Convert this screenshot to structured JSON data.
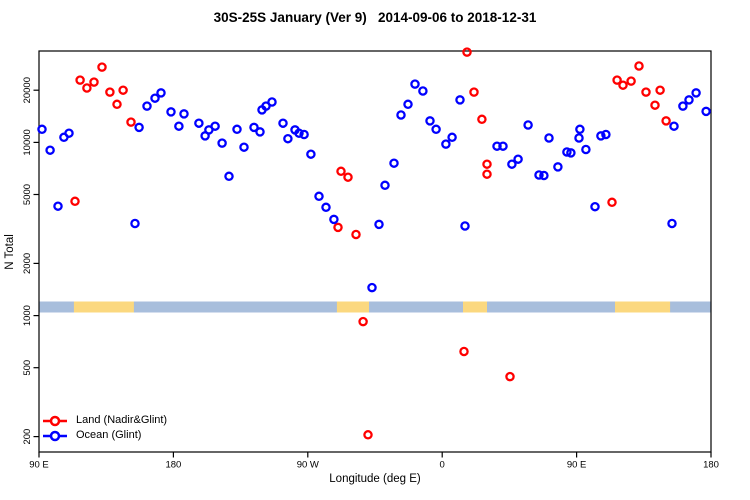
{
  "title": "30S-25S January (Ver 9)   2014-09-06 to 2018-12-31",
  "chart_data": {
    "type": "scatter",
    "xlabel": "Longitude (deg E)",
    "ylabel": "N Total",
    "x_range": [
      90,
      540
    ],
    "y_range": [
      163,
      33700
    ],
    "y_scale": "log",
    "grid": false,
    "x_ticks": [
      {
        "value": 90,
        "label": "90 E"
      },
      {
        "value": 180,
        "label": "180"
      },
      {
        "value": 270,
        "label": "90 W"
      },
      {
        "value": 360,
        "label": "0"
      },
      {
        "value": 450,
        "label": "90 E"
      },
      {
        "value": 540,
        "label": "180"
      }
    ],
    "y_ticks": [
      200,
      500,
      1000,
      2000,
      5000,
      10000,
      20000
    ],
    "band": {
      "description": "land/ocean strip along longitude",
      "value_top": 1205,
      "value_bottom": 1041,
      "ocean_color": "#a8bedc",
      "land_color": "#fbd87f",
      "land_segments_lon": [
        [
          113.4,
          153.6
        ],
        [
          289.5,
          311.0
        ],
        [
          373.9,
          390.0
        ],
        [
          475.7,
          512.6
        ]
      ]
    },
    "legend": {
      "position": "bottom-left"
    },
    "series": [
      {
        "name": "Land (Nadir&Glint)",
        "color": "#ff0000",
        "marker": "open-circle",
        "points": [
          [
            132.2,
            27200
          ],
          [
            117.5,
            22900
          ],
          [
            126.8,
            22300
          ],
          [
            122.1,
            20600
          ],
          [
            146.3,
            20000
          ],
          [
            137.5,
            19500
          ],
          [
            142.2,
            16600
          ],
          [
            151.6,
            13100
          ],
          [
            114.1,
            4570
          ],
          [
            292.2,
            6810
          ],
          [
            296.9,
            6290
          ],
          [
            290.2,
            3230
          ],
          [
            302.3,
            2940
          ],
          [
            376.6,
            33200
          ],
          [
            381.3,
            19500
          ],
          [
            386.6,
            13600
          ],
          [
            390,
            7480
          ],
          [
            390,
            6550
          ],
          [
            307,
            923
          ],
          [
            374.6,
            620
          ],
          [
            405.4,
            444
          ],
          [
            310.3,
            205
          ],
          [
            473.7,
            4510
          ],
          [
            477.1,
            22900
          ],
          [
            481.1,
            21400
          ],
          [
            486.5,
            22600
          ],
          [
            491.8,
            27600
          ],
          [
            496.5,
            19500
          ],
          [
            505.9,
            20000
          ],
          [
            502.5,
            16400
          ],
          [
            509.9,
            13300
          ]
        ]
      },
      {
        "name": "Ocean (Glint)",
        "color": "#0000ff",
        "marker": "open-circle",
        "points": [
          [
            92,
            11900
          ],
          [
            110.1,
            11300
          ],
          [
            106.7,
            10700
          ],
          [
            97.4,
            9010
          ],
          [
            102.7,
            4280
          ],
          [
            154.3,
            3400
          ],
          [
            171.7,
            19300
          ],
          [
            167.7,
            18000
          ],
          [
            162.3,
            16200
          ],
          [
            178.4,
            15000
          ],
          [
            187.1,
            14600
          ],
          [
            183.7,
            12400
          ],
          [
            157,
            12200
          ],
          [
            197.1,
            12900
          ],
          [
            207.9,
            12400
          ],
          [
            203.8,
            11800
          ],
          [
            201.2,
            10900
          ],
          [
            222.6,
            11900
          ],
          [
            234,
            12200
          ],
          [
            238,
            11500
          ],
          [
            212.6,
            9900
          ],
          [
            227.3,
            9380
          ],
          [
            217.2,
            6370
          ],
          [
            246,
            17100
          ],
          [
            242,
            16200
          ],
          [
            239.3,
            15400
          ],
          [
            253.4,
            12900
          ],
          [
            261.4,
            11800
          ],
          [
            264.1,
            11300
          ],
          [
            256.7,
            10500
          ],
          [
            267.5,
            11100
          ],
          [
            272.1,
            8550
          ],
          [
            277.5,
            4880
          ],
          [
            282.2,
            4220
          ],
          [
            287.5,
            3590
          ],
          [
            317.7,
            3360
          ],
          [
            327.7,
            7580
          ],
          [
            321.7,
            5650
          ],
          [
            313,
            1450
          ],
          [
            341.8,
            21700
          ],
          [
            347.1,
            19800
          ],
          [
            337.1,
            16600
          ],
          [
            332.4,
            14400
          ],
          [
            351.8,
            13300
          ],
          [
            355.9,
            11900
          ],
          [
            366.6,
            10700
          ],
          [
            362.5,
            9770
          ],
          [
            371.9,
            17600
          ],
          [
            375.3,
            3290
          ],
          [
            396.7,
            9500
          ],
          [
            400.7,
            9500
          ],
          [
            410.8,
            8000
          ],
          [
            406.7,
            7480
          ],
          [
            417.5,
            12600
          ],
          [
            431.5,
            10600
          ],
          [
            424.8,
            6480
          ],
          [
            428.1,
            6440
          ],
          [
            437.5,
            7220
          ],
          [
            443.5,
            8800
          ],
          [
            446.2,
            8700
          ],
          [
            452.2,
            11900
          ],
          [
            451.6,
            10600
          ],
          [
            456.2,
            9100
          ],
          [
            466.3,
            10900
          ],
          [
            469.6,
            11100
          ],
          [
            462.3,
            4250
          ],
          [
            513.9,
            3400
          ],
          [
            515.2,
            12400
          ],
          [
            521.2,
            16200
          ],
          [
            525.3,
            17600
          ],
          [
            530,
            19300
          ],
          [
            536.7,
            15100
          ]
        ]
      }
    ]
  }
}
